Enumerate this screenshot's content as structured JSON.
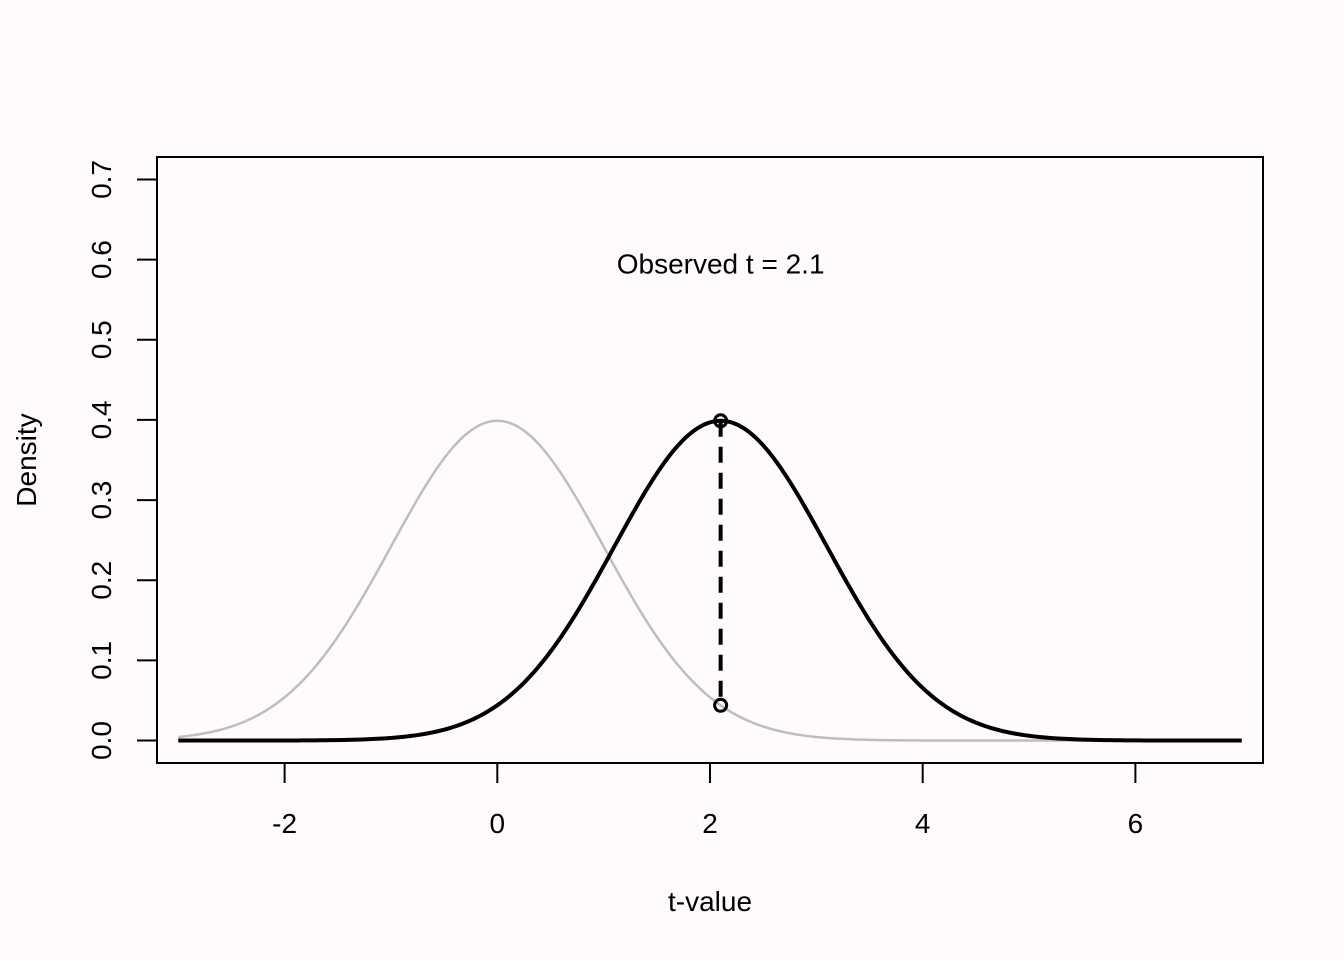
{
  "chart_data": {
    "type": "line",
    "xlabel": "t-value",
    "ylabel": "Density",
    "xlim": [
      -3.2,
      7.2
    ],
    "ylim": [
      -0.028,
      0.728
    ],
    "x_ticks": [
      -2,
      0,
      2,
      4,
      6
    ],
    "y_ticks": [
      0.0,
      0.1,
      0.2,
      0.3,
      0.4,
      0.5,
      0.6,
      0.7
    ],
    "x_tick_labels": [
      "-2",
      "0",
      "2",
      "4",
      "6"
    ],
    "y_tick_labels": [
      "0.0",
      "0.1",
      "0.2",
      "0.3",
      "0.4",
      "0.5",
      "0.6",
      "0.7"
    ],
    "series": [
      {
        "role": "null-distribution",
        "distribution": "normal",
        "mean": 0,
        "sd": 1,
        "x_range": [
          -3,
          7
        ],
        "color": "#bebebe"
      },
      {
        "role": "alternative-distribution",
        "distribution": "normal",
        "mean": 2.1,
        "sd": 1,
        "x_range": [
          -3,
          7
        ],
        "color": "#000000"
      }
    ],
    "observed_t": 2.1,
    "points": [
      {
        "x": 2.1,
        "y": 0.3989
      },
      {
        "x": 2.1,
        "y": 0.044
      }
    ],
    "vertical_segment": {
      "x": 2.1,
      "y_from": 0.044,
      "y_to": 0.3989,
      "style": "dashed"
    },
    "annotation": {
      "text": "Observed t =  2.1",
      "x": 2.1,
      "y": 0.595
    },
    "grid": false
  }
}
